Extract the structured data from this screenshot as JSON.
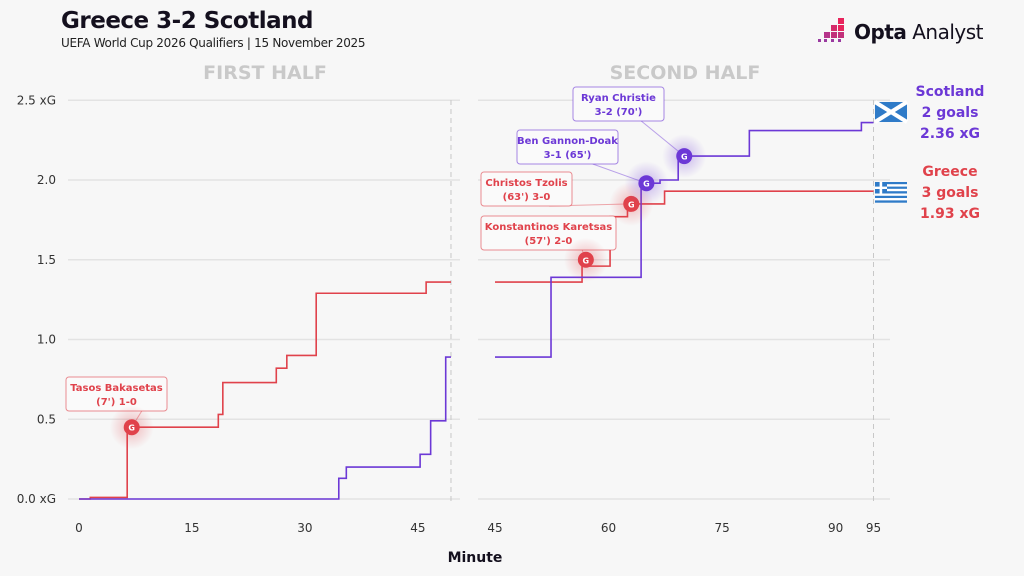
{
  "header": {
    "title": "Greece 3-2 Scotland",
    "subtitle": "UEFA World Cup 2026 Qualifiers | 15 November 2025"
  },
  "logo": {
    "brand_bold": "Opta",
    "brand_light": "Analyst"
  },
  "chart_data": {
    "type": "line",
    "step": true,
    "panels": [
      {
        "title": "FIRST HALF",
        "xticks": [
          0,
          15,
          30,
          45
        ],
        "xlim": [
          0,
          49.4
        ],
        "end_marker": 49.4
      },
      {
        "title": "SECOND HALF",
        "xticks": [
          45,
          60,
          75,
          90,
          95
        ],
        "xlim": [
          45,
          95
        ],
        "end_marker": 95
      }
    ],
    "xlabel": "Minute",
    "ylim": [
      0,
      2.5
    ],
    "yticks": [
      "0.0 xG",
      "0.5",
      "1.0",
      "1.5",
      "2.0",
      "2.5 xG"
    ],
    "ytick_values": [
      0,
      0.5,
      1.0,
      1.5,
      2.0,
      2.5
    ],
    "grid": true,
    "series": [
      {
        "name": "Greece",
        "color": "#e0424b",
        "goals_label": "3 goals",
        "xg_label": "1.93 xG",
        "flag": "greece-flag",
        "first_half": [
          [
            0,
            0
          ],
          [
            1.5,
            0.01
          ],
          [
            6.4,
            0.45
          ],
          [
            18.5,
            0.53
          ],
          [
            19.1,
            0.73
          ],
          [
            26.2,
            0.82
          ],
          [
            27.6,
            0.9
          ],
          [
            31.5,
            1.29
          ],
          [
            46.1,
            1.36
          ],
          [
            49.4,
            1.36
          ]
        ],
        "second_half": [
          [
            45,
            1.36
          ],
          [
            56.5,
            1.46
          ],
          [
            60.2,
            1.77
          ],
          [
            62.5,
            1.85
          ],
          [
            67.4,
            1.93
          ],
          [
            95,
            1.93
          ]
        ]
      },
      {
        "name": "Scotland",
        "color": "#6c38d6",
        "goals_label": "2 goals",
        "xg_label": "2.36 xG",
        "flag": "scotland-flag",
        "first_half": [
          [
            0,
            0
          ],
          [
            34.5,
            0.13
          ],
          [
            35.5,
            0.2
          ],
          [
            45.3,
            0.28
          ],
          [
            46.7,
            0.49
          ],
          [
            48.7,
            0.89
          ],
          [
            49.4,
            0.89
          ]
        ],
        "second_half": [
          [
            45,
            0.89
          ],
          [
            52.4,
            1.39
          ],
          [
            64.3,
            1.98
          ],
          [
            66.8,
            2.0
          ],
          [
            69.2,
            2.15
          ],
          [
            78.6,
            2.31
          ],
          [
            93.4,
            2.36
          ],
          [
            95,
            2.36
          ]
        ]
      }
    ],
    "goals": [
      {
        "team": "Greece",
        "half": 1,
        "minute": 7,
        "xg": 0.45,
        "line1": "Tasos Bakasetas",
        "line2": "(7') 1-0"
      },
      {
        "team": "Greece",
        "half": 2,
        "minute": 57,
        "xg": 1.5,
        "line1": "Konstantinos Karetsas",
        "line2": "(57') 2-0"
      },
      {
        "team": "Greece",
        "half": 2,
        "minute": 63,
        "xg": 1.85,
        "line1": "Christos Tzolis",
        "line2": "(63') 3-0"
      },
      {
        "team": "Scotland",
        "half": 2,
        "minute": 65,
        "xg": 1.98,
        "line1": "Ben Gannon-Doak",
        "line2": "3-1 (65')"
      },
      {
        "team": "Scotland",
        "half": 2,
        "minute": 70,
        "xg": 2.15,
        "line1": "Ryan Christie",
        "line2": "3-2 (70')"
      }
    ],
    "goal_marker_text": "G"
  }
}
